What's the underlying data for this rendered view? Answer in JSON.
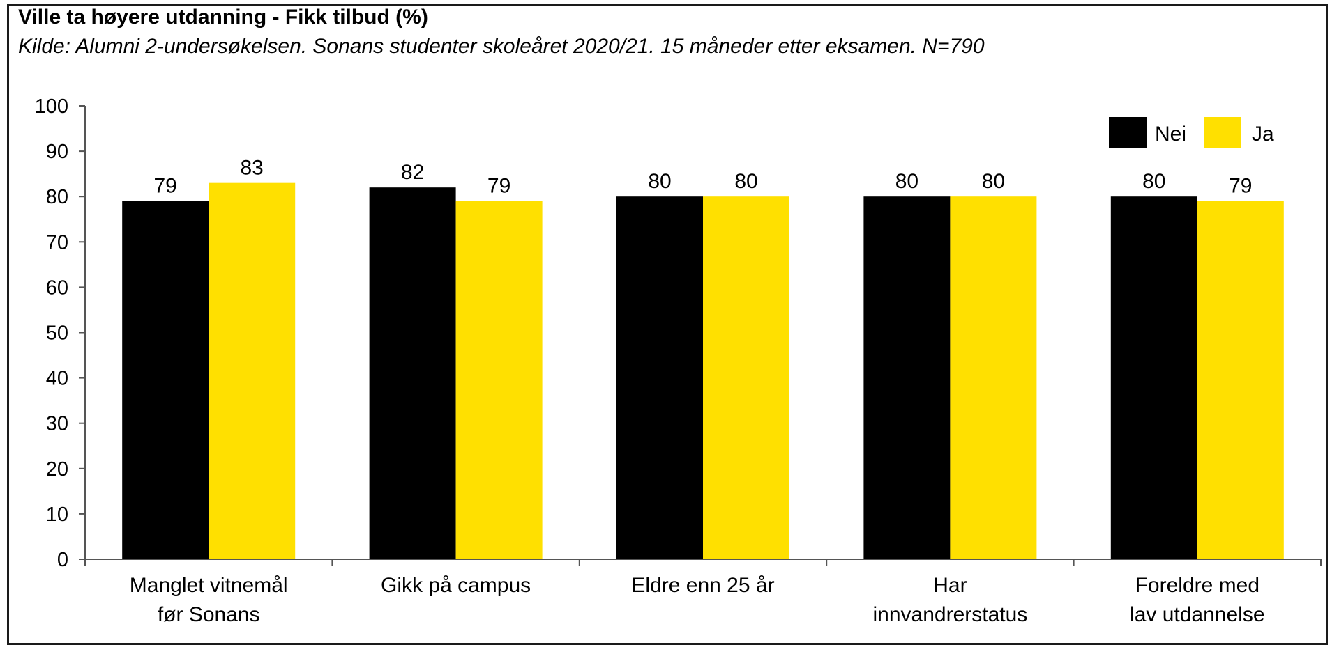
{
  "chart_data": {
    "type": "bar",
    "title": "Ville ta høyere utdanning - Fikk tilbud (%)",
    "subtitle": "Kilde: Alumni 2-undersøkelsen. Sonans studenter skoleåret 2020/21. 15 måneder etter eksamen. N=790",
    "categories": [
      [
        "Manglet vitnemål",
        "før Sonans"
      ],
      [
        "Gikk på campus"
      ],
      [
        "Eldre enn 25 år"
      ],
      [
        "Har",
        "innvandrerstatus"
      ],
      [
        "Foreldre med",
        "lav utdannelse"
      ]
    ],
    "series": [
      {
        "name": "Nei",
        "color": "#000000",
        "values": [
          79,
          82,
          80,
          80,
          80
        ],
        "labels": [
          "79",
          "82",
          "80",
          "80",
          "80"
        ]
      },
      {
        "name": "Ja",
        "color": "#FFE000",
        "values": [
          83,
          79,
          80,
          80,
          79
        ],
        "labels": [
          "83",
          "79",
          "80",
          "80",
          "79"
        ]
      }
    ],
    "ylim": [
      0,
      100
    ],
    "yticks": [
      "0",
      "10",
      "20",
      "30",
      "40",
      "50",
      "60",
      "70",
      "80",
      "90",
      "100"
    ],
    "xlabel": "",
    "ylabel": "",
    "grid": false,
    "legend_position": "top-right"
  }
}
